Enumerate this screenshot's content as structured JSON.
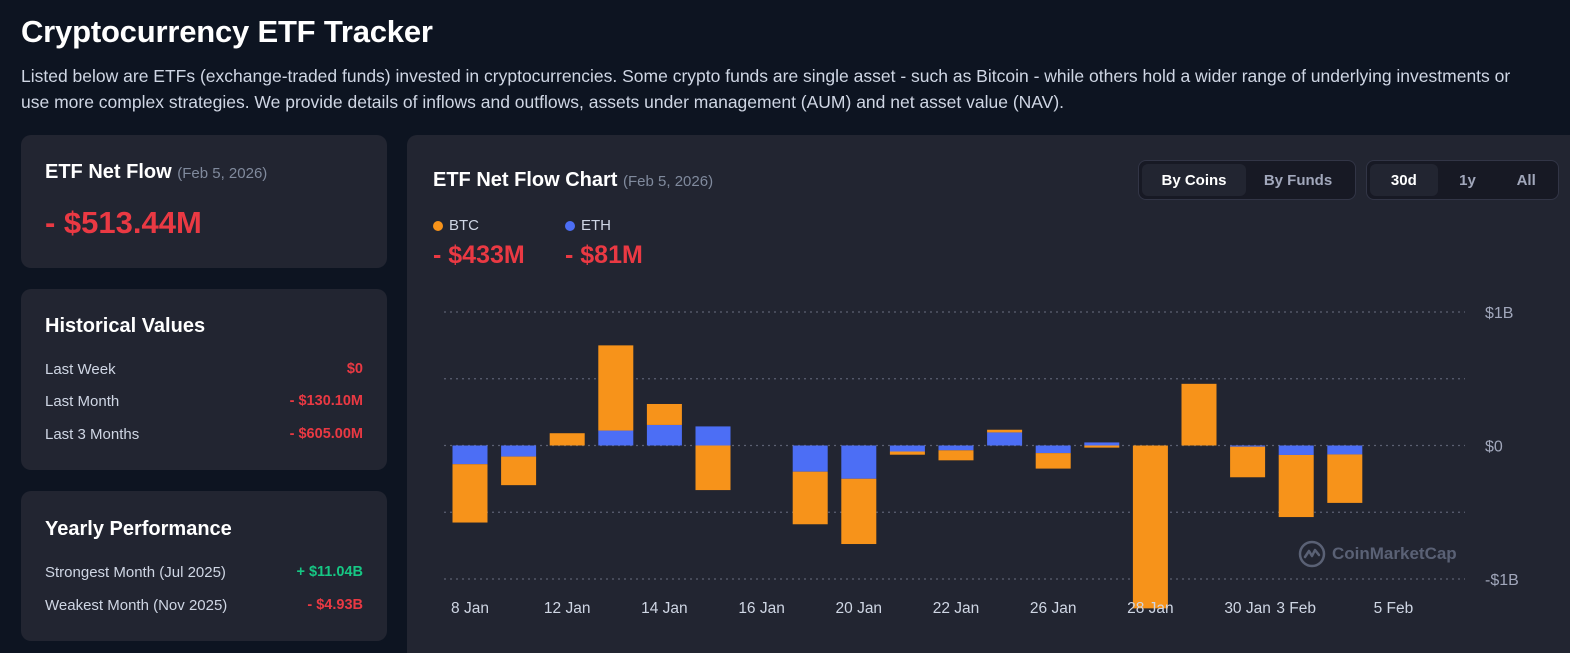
{
  "header": {
    "title": "Cryptocurrency ETF Tracker",
    "description": "Listed below are ETFs (exchange-traded funds) invested in cryptocurrencies. Some crypto funds are single asset - such as Bitcoin - while others hold a wider range of underlying investments or use more complex strategies. We provide details of inflows and outflows, assets under management (AUM) and net asset value (NAV)."
  },
  "net_flow": {
    "title": "ETF Net Flow",
    "date": "(Feb 5, 2026)",
    "value": "- $513.44M"
  },
  "historical": {
    "title": "Historical Values",
    "rows": [
      {
        "label": "Last Week",
        "value": "$0"
      },
      {
        "label": "Last Month",
        "value": "- $130.10M"
      },
      {
        "label": "Last 3 Months",
        "value": "- $605.00M"
      }
    ]
  },
  "yearly": {
    "title": "Yearly Performance",
    "rows": [
      {
        "label": "Strongest Month (Jul 2025)",
        "value": "+ $11.04B"
      },
      {
        "label": "Weakest Month (Nov 2025)",
        "value": "- $4.93B"
      }
    ]
  },
  "chart_card": {
    "title": "ETF Net Flow Chart",
    "date": "(Feb 5, 2026)",
    "view_toggle": [
      "By Coins",
      "By Funds"
    ],
    "range_toggle": [
      "30d",
      "1y",
      "All"
    ],
    "watermark": "CoinMarketCap",
    "legend": [
      {
        "name": "BTC",
        "value": "- $433M",
        "color": "#f7931a"
      },
      {
        "name": "ETH",
        "value": "- $81M",
        "color": "#4c6ef5"
      }
    ]
  },
  "chart_data": {
    "type": "bar",
    "stacked": true,
    "x_tick_labels": [
      "8 Jan",
      "12 Jan",
      "14 Jan",
      "16 Jan",
      "20 Jan",
      "22 Jan",
      "26 Jan",
      "28 Jan",
      "30 Jan",
      "3 Feb",
      "5 Feb"
    ],
    "y_tick_labels": [
      "$1B",
      "$0",
      "-$1B"
    ],
    "ylim": [
      -1000,
      1000
    ],
    "unit": "$M",
    "grid": true,
    "series": [
      {
        "name": "BTC",
        "color": "#f7931a",
        "values": [
          -437,
          -214,
          92,
          638,
          157,
          -334,
          0,
          -394,
          -489,
          -24,
          -75,
          20,
          -116,
          -16,
          -1220,
          462,
          -229,
          -465,
          -363
        ]
      },
      {
        "name": "ETH",
        "color": "#4c6ef5",
        "values": [
          -140,
          -83,
          0,
          112,
          154,
          143,
          0,
          -196,
          -249,
          -45,
          -36,
          98,
          -57,
          23,
          0,
          0,
          -9,
          -71,
          -67
        ]
      }
    ],
    "x_tick_positions": [
      0,
      2,
      4,
      6,
      8,
      10,
      12,
      14,
      16,
      17,
      19
    ]
  }
}
